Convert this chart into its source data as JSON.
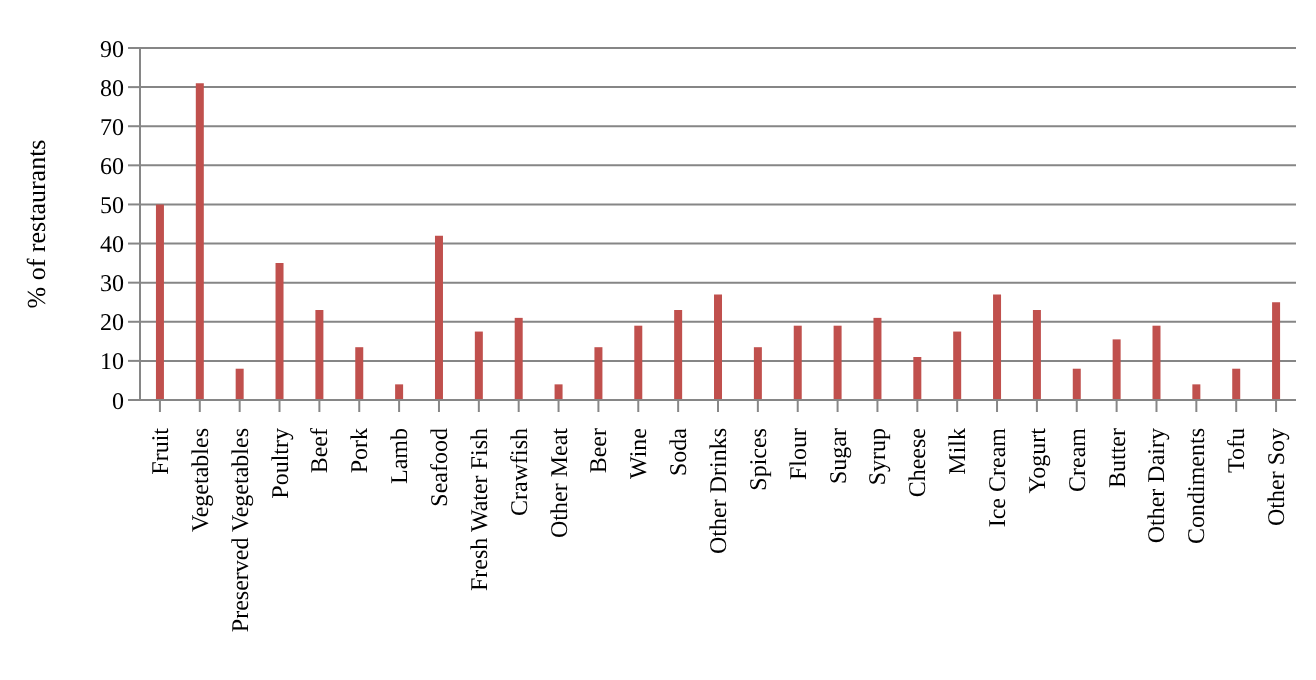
{
  "chart_data": {
    "type": "bar",
    "ylabel": "% of restaurants",
    "categories": [
      "Fruit",
      "Vegetables",
      "Preserved Vegetables",
      "Poultry",
      "Beef",
      "Pork",
      "Lamb",
      "Seafood",
      "Fresh Water Fish",
      "Crawfish",
      "Other Meat",
      "Beer",
      "Wine",
      "Soda",
      "Other Drinks",
      "Spices",
      "Flour",
      "Sugar",
      "Syrup",
      "Cheese",
      "Milk",
      "Ice Cream",
      "Yogurt",
      "Cream",
      "Butter",
      "Other Dairy",
      "Condiments",
      "Tofu",
      "Other Soy"
    ],
    "values": [
      50,
      81,
      8,
      35,
      23,
      13.5,
      4,
      42,
      17.5,
      21,
      4,
      13.5,
      19,
      23,
      27,
      13.5,
      19,
      19,
      21,
      11,
      17.5,
      27,
      23,
      8,
      15.5,
      19,
      4,
      8,
      25
    ],
    "color": "#c0504d",
    "ylim": [
      0,
      90
    ],
    "yticks": [
      0,
      10,
      20,
      30,
      40,
      50,
      60,
      70,
      80,
      90
    ],
    "grid": "y"
  }
}
